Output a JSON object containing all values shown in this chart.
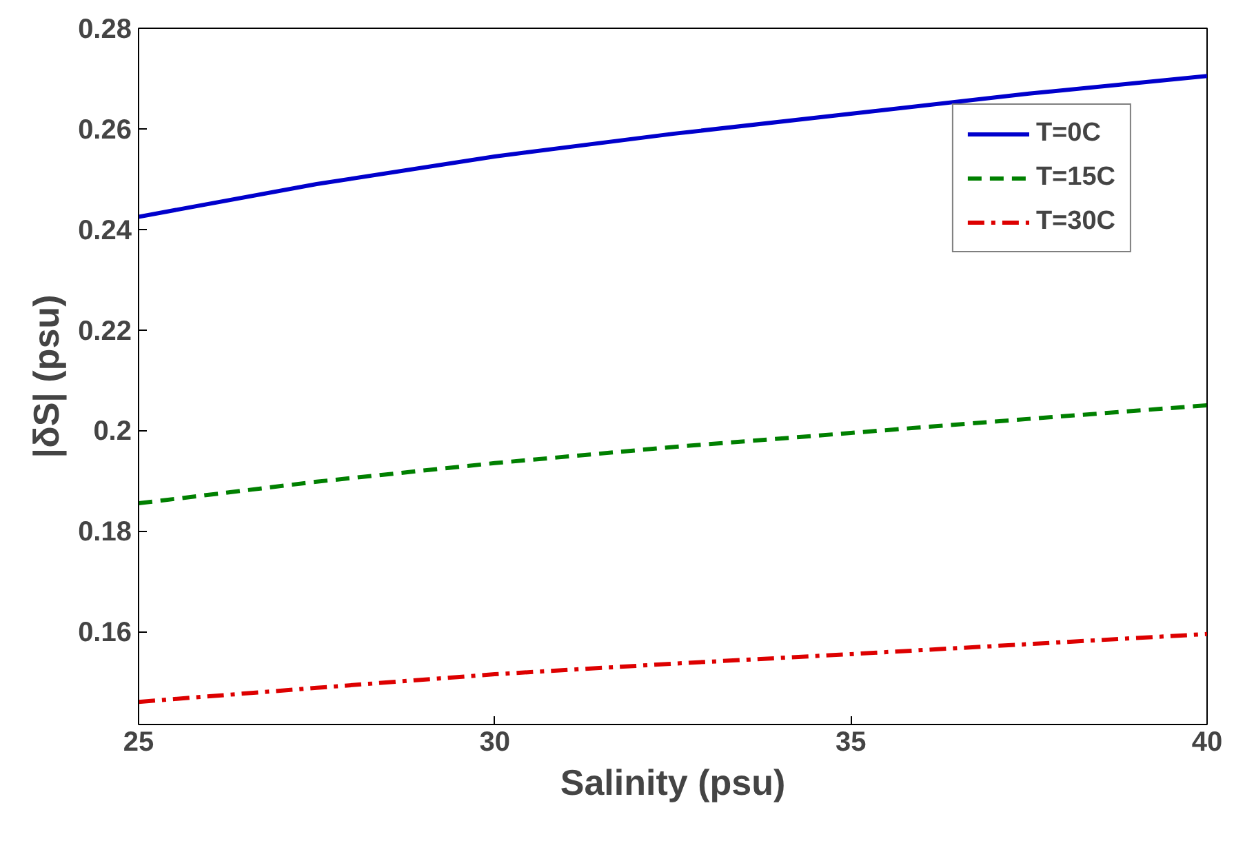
{
  "chart_data": {
    "type": "line",
    "xlabel": "Salinity (psu)",
    "ylabel": "|δS| (psu)",
    "x": [
      25,
      27.5,
      30,
      32.5,
      35,
      37.5,
      40
    ],
    "series": [
      {
        "name": "T=0C",
        "color": "#0000cc",
        "line_style": "solid",
        "values": [
          0.2425,
          0.249,
          0.2545,
          0.259,
          0.263,
          0.267,
          0.2705
        ]
      },
      {
        "name": "T=15C",
        "color": "#008000",
        "line_style": "dashed",
        "values": [
          0.1855,
          0.1898,
          0.1935,
          0.1967,
          0.1995,
          0.2023,
          0.205
        ]
      },
      {
        "name": "T=30C",
        "color": "#dd0000",
        "line_style": "dashdot",
        "values": [
          0.146,
          0.1488,
          0.1515,
          0.1536,
          0.1555,
          0.1575,
          0.1595
        ]
      }
    ],
    "xlim": [
      25,
      40
    ],
    "ylim": [
      0.1415,
      0.28
    ],
    "xticks": [
      25,
      30,
      35,
      40
    ],
    "yticks": [
      0.16,
      0.18,
      0.2,
      0.22,
      0.24,
      0.26,
      0.28
    ],
    "grid": false,
    "legend": "top right",
    "marker": "none"
  }
}
